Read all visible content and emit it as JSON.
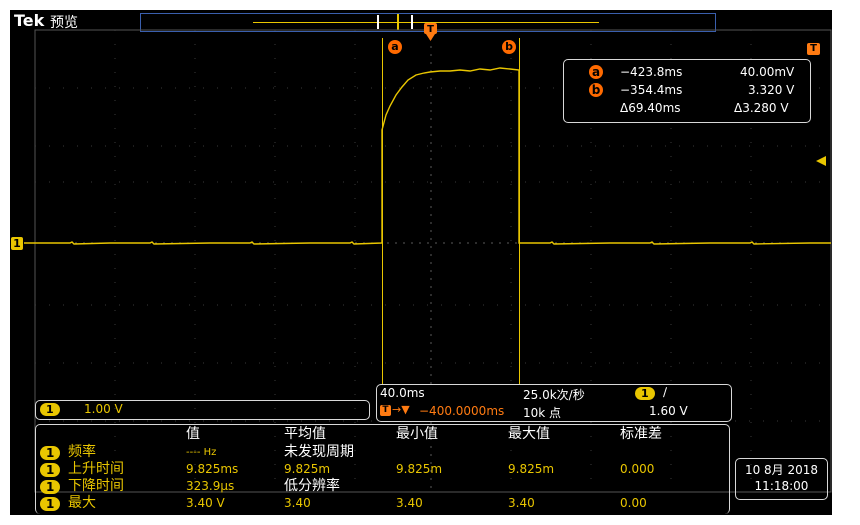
{
  "header": {
    "brand": "Tek",
    "mode": "预览"
  },
  "markers": {
    "trigger_icon": "T",
    "cursor_a": "a",
    "cursor_b": "b",
    "channel": "1"
  },
  "cursor_readout": {
    "a_time": "−423.8ms",
    "a_value": "40.00mV",
    "b_time": "−354.4ms",
    "b_value": "3.320 V",
    "delta_time": "Δ69.40ms",
    "delta_value": "Δ3.280 V"
  },
  "channel_scale": {
    "badge": "1",
    "value": "1.00 V"
  },
  "horizontal": {
    "time_div": "40.0ms",
    "sample_rate": "25.0k次/秒",
    "trigger_channel": "1",
    "trigger_slope": "∕",
    "trigger_position": "−400.0000ms",
    "record_length": "10k 点",
    "trigger_level": "1.60 V"
  },
  "measurements": {
    "headers": [
      "值",
      "平均值",
      "最小值",
      "最大值",
      "标准差"
    ],
    "rows": [
      {
        "ch": "1",
        "name": "频率",
        "value": "---- Hz",
        "mean": "未发现周期",
        "min": "",
        "max": "",
        "std": ""
      },
      {
        "ch": "1",
        "name": "上升时间",
        "value": "9.825ms",
        "mean": "9.825m",
        "min": "9.825m",
        "max": "9.825m",
        "std": "0.000"
      },
      {
        "ch": "1",
        "name": "下降时间",
        "value": "323.9μs",
        "mean": "低分辨率",
        "min": "",
        "max": "",
        "std": ""
      },
      {
        "ch": "1",
        "name": "最大",
        "value": "3.40 V",
        "mean": "3.40",
        "min": "3.40",
        "max": "3.40",
        "std": "0.00"
      }
    ]
  },
  "datetime": {
    "date": "10 8月 2018",
    "time": "11:18:00"
  },
  "colors": {
    "channel1": "#e9c600",
    "cursor": "#ff6a00",
    "background": "#000000"
  }
}
